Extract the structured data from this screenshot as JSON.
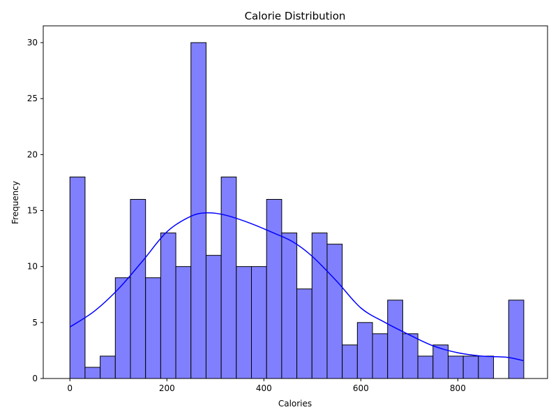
{
  "chart_data": {
    "type": "bar",
    "title": "Calorie Distribution",
    "xlabel": "Calories",
    "ylabel": "Frequency",
    "xlim": [
      -55,
      985
    ],
    "ylim": [
      0,
      31.5
    ],
    "x_ticks": [
      0,
      200,
      400,
      600,
      800
    ],
    "y_ticks": [
      0,
      5,
      10,
      15,
      20,
      25,
      30
    ],
    "bin_start": 0,
    "bin_width": 31.2,
    "values": [
      18,
      1,
      2,
      9,
      16,
      9,
      13,
      10,
      30,
      11,
      18,
      10,
      10,
      16,
      13,
      8,
      13,
      12,
      3,
      5,
      4,
      7,
      4,
      2,
      3,
      2,
      2,
      2,
      0,
      7
    ],
    "bar_color": "#8080ff",
    "bar_edge_color": "#000000",
    "kde_color": "#0000ff",
    "kde": {
      "x": [
        0,
        50,
        100,
        150,
        200,
        250,
        285,
        320,
        370,
        420,
        460,
        500,
        550,
        600,
        650,
        700,
        750,
        800,
        850,
        900,
        935
      ],
      "y": [
        4.6,
        6.0,
        8.0,
        10.5,
        13.1,
        14.5,
        14.8,
        14.6,
        13.9,
        13.0,
        12.2,
        10.9,
        8.7,
        6.3,
        5.0,
        3.9,
        2.9,
        2.3,
        2.0,
        1.9,
        1.6
      ]
    },
    "grid": false,
    "legend": "none"
  }
}
